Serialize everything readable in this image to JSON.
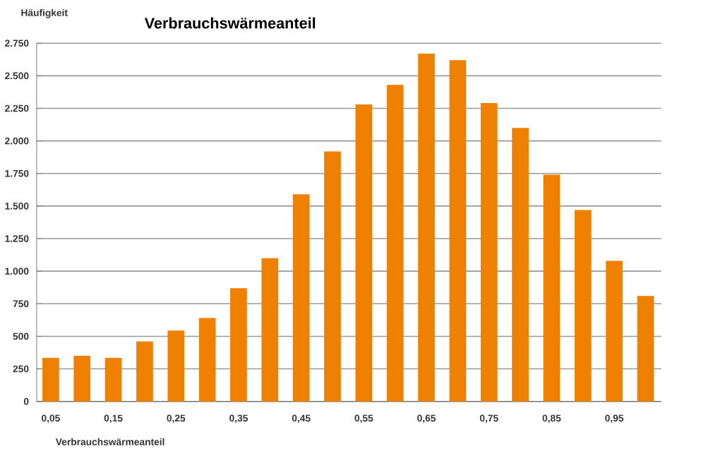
{
  "chart_data": {
    "type": "bar",
    "title": "Verbrauchswärmeanteil",
    "xlabel": "Verbrauchswärmeanteil",
    "ylabel": "Häufigkeit",
    "categories": [
      "0,05",
      null,
      "0,15",
      null,
      "0,25",
      null,
      "0,35",
      null,
      "0,45",
      null,
      "0,55",
      null,
      "0,65",
      null,
      "0,75",
      null,
      "0,85",
      null,
      "0,95",
      null
    ],
    "values": [
      335,
      350,
      335,
      460,
      545,
      640,
      870,
      1100,
      1590,
      1920,
      2280,
      2430,
      2670,
      2620,
      2290,
      2100,
      1740,
      1470,
      1080,
      810
    ],
    "color": "#f08000",
    "ylim": [
      0,
      2750
    ],
    "yticks": [
      0,
      250,
      500,
      750,
      {
        "value": 1000,
        "label": "1.000"
      },
      {
        "value": 1250,
        "label": "1.250"
      },
      {
        "value": 1500,
        "label": "1.500"
      },
      {
        "value": 1750,
        "label": "1.750"
      },
      {
        "value": 2000,
        "label": "2.000"
      },
      {
        "value": 2250,
        "label": "2.250"
      },
      {
        "value": 2500,
        "label": "2.500"
      },
      {
        "value": 2750,
        "label": "2.750"
      }
    ],
    "grid": "y"
  }
}
